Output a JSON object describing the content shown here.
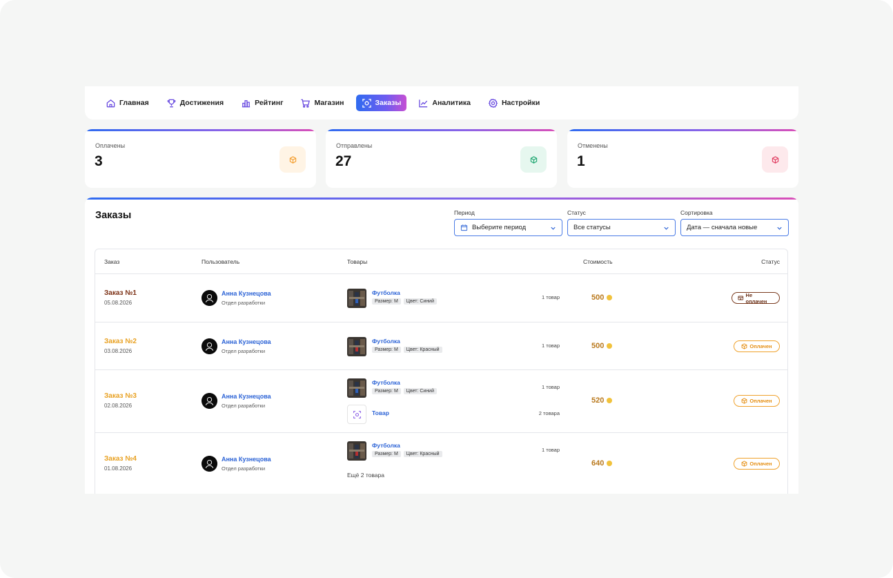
{
  "nav": {
    "items": [
      {
        "label": "Главная",
        "icon": "home-icon",
        "active": false
      },
      {
        "label": "Достижения",
        "icon": "trophy-icon",
        "active": false
      },
      {
        "label": "Рейтинг",
        "icon": "rating-icon",
        "active": false
      },
      {
        "label": "Магазин",
        "icon": "cart-icon",
        "active": false
      },
      {
        "label": "Заказы",
        "icon": "orders-icon",
        "active": true
      },
      {
        "label": "Аналитика",
        "icon": "analytics-icon",
        "active": false
      },
      {
        "label": "Настройки",
        "icon": "settings-icon",
        "active": false
      }
    ]
  },
  "stats": [
    {
      "label": "Оплачены",
      "value": "3",
      "icon": "box-icon",
      "color": "#f39c2b",
      "bg": "#fff4e5"
    },
    {
      "label": "Отправлены",
      "value": "27",
      "icon": "box-icon",
      "color": "#1aa56e",
      "bg": "#e6f7ef"
    },
    {
      "label": "Отменены",
      "value": "1",
      "icon": "box-icon",
      "color": "#e0385d",
      "bg": "#fde9ec"
    }
  ],
  "orders": {
    "title": "Заказы",
    "filters": {
      "period": {
        "label": "Период",
        "value": "Выберите период"
      },
      "status": {
        "label": "Статус",
        "value": "Все статусы"
      },
      "sort": {
        "label": "Сортировка",
        "value": "Дата — сначала новые"
      }
    },
    "columns": {
      "order": "Заказ",
      "user": "Пользователь",
      "items": "Товары",
      "cost": "Стоимость",
      "status": "Статус"
    },
    "rows": [
      {
        "title": "Заказ №1",
        "title_color": "#7a2e12",
        "date": "05.08.2026",
        "user": "Анна Кузнецова",
        "dept": "Отдел разработки",
        "product": "Футболка",
        "size": "Размер: M",
        "color": "Цвет: Синий",
        "qty": "1 товар",
        "price": "500",
        "status": "Не оплачен"
      },
      {
        "title": "Заказ №2",
        "title_color": "#e8a020",
        "date": "03.08.2026",
        "user": "Анна Кузнецова",
        "dept": "Отдел разработки",
        "product": "Футболка",
        "size": "Размер: M",
        "color": "Цвет: Красный",
        "qty": "1 товар",
        "price": "500",
        "status": "Оплачен"
      },
      {
        "title": "Заказ №3",
        "title_color": "#e8a020",
        "date": "02.08.2026",
        "user": "Анна Кузнецова",
        "dept": "Отдел разработки",
        "product": "Футболка",
        "size": "Размер: M",
        "color": "Цвет: Синий",
        "qty": "1 товар",
        "product2": "Товар",
        "qty2": "2 товара",
        "price": "520",
        "status": "Оплачен"
      },
      {
        "title": "Заказ №4",
        "title_color": "#e8a020",
        "date": "01.08.2026",
        "user": "Анна Кузнецова",
        "dept": "Отдел разработки",
        "product": "Футболка",
        "size": "Размер: M",
        "color": "Цвет: Красный",
        "qty": "1 товар",
        "more": "Ещё 2 товара",
        "price": "640",
        "status": "Оплачен"
      }
    ]
  }
}
